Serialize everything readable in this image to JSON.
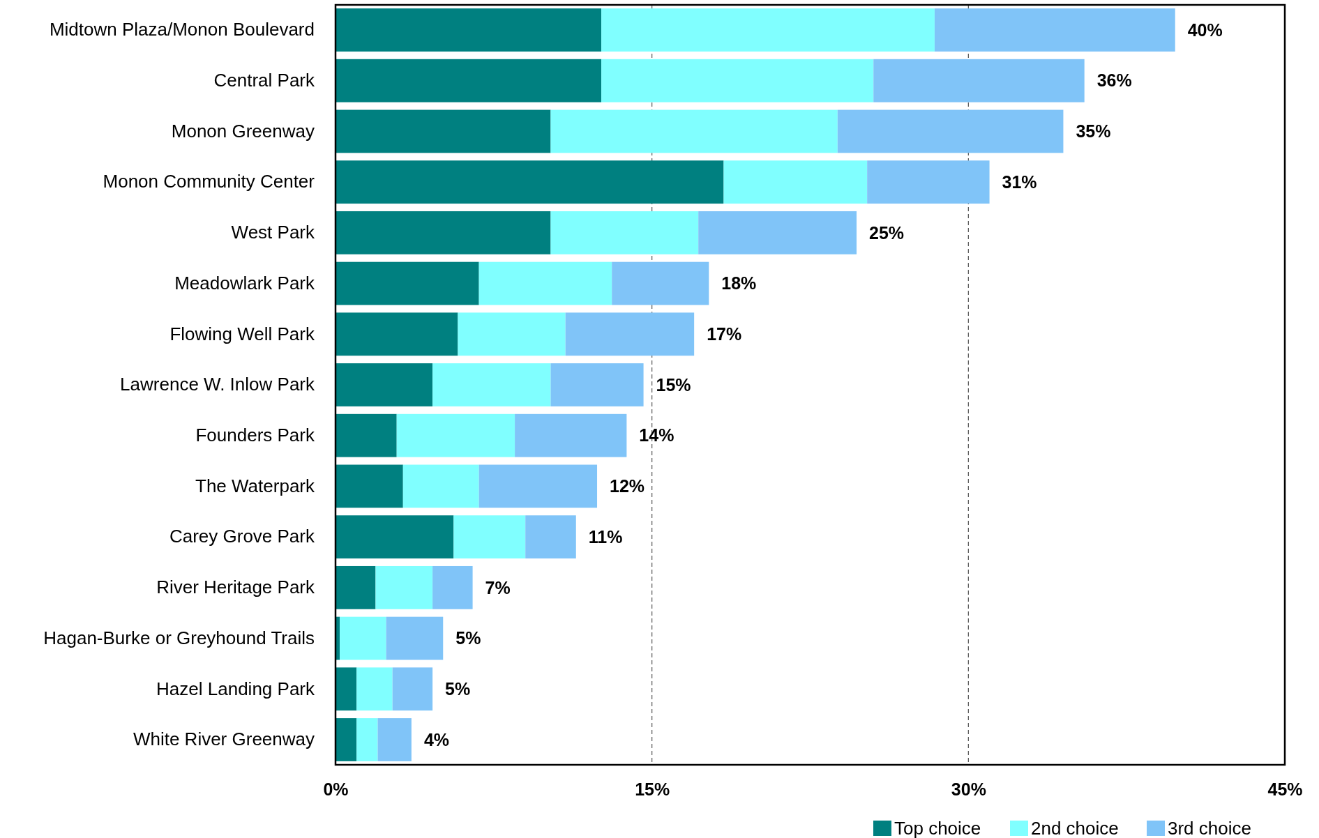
{
  "chart_data": {
    "type": "bar",
    "orientation": "horizontal",
    "stacked": true,
    "categories": [
      "Midtown Plaza/Monon Boulevard",
      "Central Park",
      "Monon Greenway",
      "Monon Community Center",
      "West Park",
      "Meadowlark Park",
      "Flowing Well Park",
      "Lawrence W. Inlow Park",
      "Founders Park",
      "The Waterpark",
      "Carey Grove Park",
      "River Heritage Park",
      "Hagan-Burke or Greyhound Trails",
      "Hazel Landing Park",
      "White River Greenway"
    ],
    "series": [
      {
        "name": "Top choice",
        "color": "#008080",
        "values": [
          12.6,
          12.6,
          10.2,
          18.4,
          10.2,
          6.8,
          5.8,
          4.6,
          2.9,
          3.2,
          5.6,
          1.9,
          0.2,
          1.0,
          1.0
        ]
      },
      {
        "name": "2nd choice",
        "color": "#80ffff",
        "values": [
          15.8,
          12.9,
          13.6,
          6.8,
          7.0,
          6.3,
          5.1,
          5.6,
          5.6,
          3.6,
          3.4,
          2.7,
          2.2,
          1.7,
          1.0
        ]
      },
      {
        "name": "3rd choice",
        "color": "#80c4f8",
        "values": [
          11.4,
          10.0,
          10.7,
          5.8,
          7.5,
          4.6,
          6.1,
          4.4,
          5.3,
          5.6,
          2.4,
          1.9,
          2.7,
          1.9,
          1.6
        ]
      }
    ],
    "totals": [
      "40%",
      "36%",
      "35%",
      "31%",
      "25%",
      "18%",
      "17%",
      "15%",
      "14%",
      "12%",
      "11%",
      "7%",
      "5%",
      "5%",
      "4%"
    ],
    "xlim": [
      0,
      45
    ],
    "xticks": [
      {
        "value": 0,
        "label": "0%"
      },
      {
        "value": 15,
        "label": "15%"
      },
      {
        "value": 30,
        "label": "30%"
      },
      {
        "value": 45,
        "label": "45%"
      }
    ],
    "grid": "x",
    "legend": "bottom right"
  }
}
